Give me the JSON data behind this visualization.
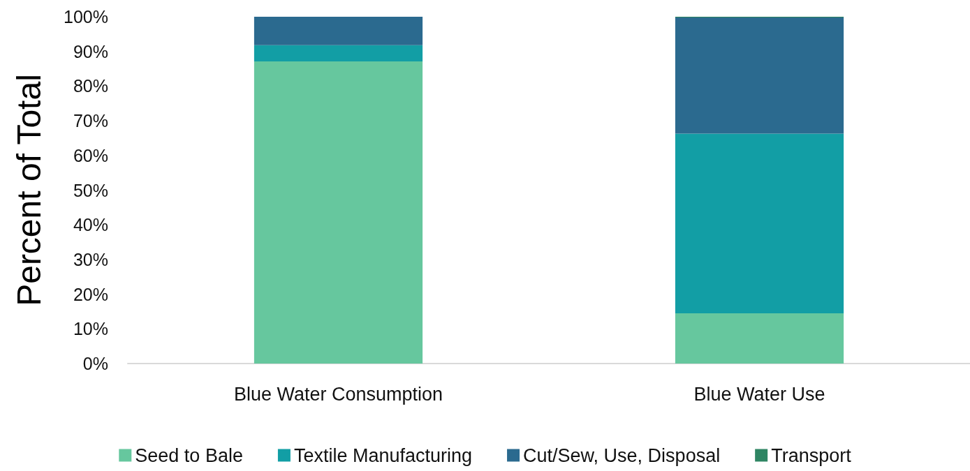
{
  "chart_data": {
    "type": "bar",
    "stacked": true,
    "ylabel": "Percent of Total",
    "categories": [
      "Blue Water Consumption",
      "Blue Water Use"
    ],
    "series": [
      {
        "name": "Seed to Bale",
        "color": "#66c79e",
        "values": [
          87.1,
          14.5
        ]
      },
      {
        "name": "Textile Manufacturing",
        "color": "#129ea5",
        "values": [
          4.7,
          51.8
        ]
      },
      {
        "name": "Cut/Sew, Use, Disposal",
        "color": "#2b6a8f",
        "values": [
          8.2,
          33.5
        ]
      },
      {
        "name": "Transport",
        "color": "#2e8563",
        "values": [
          0,
          0.2
        ]
      }
    ],
    "ylim": [
      0,
      100
    ],
    "yticks": [
      {
        "value": 0,
        "label": "0%"
      },
      {
        "value": 10,
        "label": "10%"
      },
      {
        "value": 20,
        "label": "20%"
      },
      {
        "value": 30,
        "label": "30%"
      },
      {
        "value": 40,
        "label": "40%"
      },
      {
        "value": 50,
        "label": "50%"
      },
      {
        "value": 60,
        "label": "60%"
      },
      {
        "value": 70,
        "label": "70%"
      },
      {
        "value": 80,
        "label": "80%"
      },
      {
        "value": 90,
        "label": "90%"
      },
      {
        "value": 100,
        "label": "100%"
      }
    ],
    "grid": false,
    "legend": "bottom"
  }
}
